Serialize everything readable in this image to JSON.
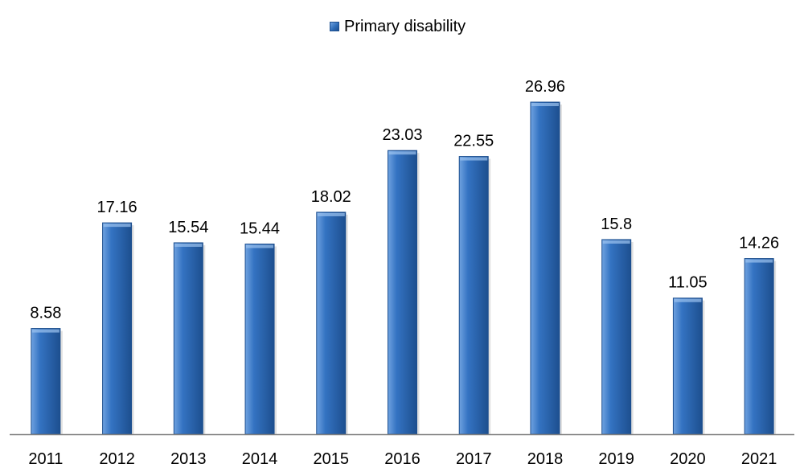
{
  "chart_data": {
    "type": "bar",
    "categories": [
      "2011",
      "2012",
      "2013",
      "2014",
      "2015",
      "2016",
      "2017",
      "2018",
      "2019",
      "2020",
      "2021"
    ],
    "series": [
      {
        "name": "Primary disability",
        "values": [
          8.58,
          17.16,
          15.54,
          15.44,
          18.02,
          23.03,
          22.55,
          26.96,
          15.8,
          11.05,
          14.26
        ],
        "labels": [
          "8.58",
          "17.16",
          "15.54",
          "15.44",
          "18.02",
          "23.03",
          "22.55",
          "26.96",
          "15.8",
          "11.05",
          "14.26"
        ]
      }
    ],
    "ylim": [
      0,
      26.96
    ],
    "grid": false,
    "legend_position": "top",
    "colors": {
      "bar_light": "#6fa2e0",
      "bar_mid": "#3473c2",
      "bar_dark": "#1d4f8f",
      "axis": "#7f7f7f"
    }
  }
}
